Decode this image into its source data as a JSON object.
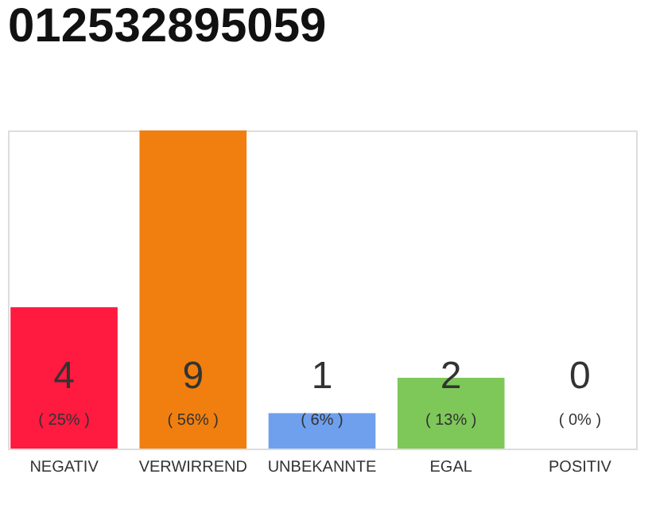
{
  "chart_data": {
    "type": "bar",
    "title": "012532895059",
    "categories": [
      "NEGATIV",
      "VERWIRREND",
      "UNBEKANNTE",
      "EGAL",
      "POSITIV"
    ],
    "values": [
      4,
      9,
      1,
      2,
      0
    ],
    "colors": [
      "#ff1a40",
      "#f07f0f",
      "#6fa0ee",
      "#7ec85a",
      "#d9d9d9"
    ],
    "ylim": [
      0,
      9
    ],
    "tick_labels": "x",
    "grid": false,
    "data_labels": true,
    "annotations": [
      "( 25% )",
      "( 56% )",
      "( 6% )",
      "( 13% )",
      "( 0% )"
    ]
  }
}
